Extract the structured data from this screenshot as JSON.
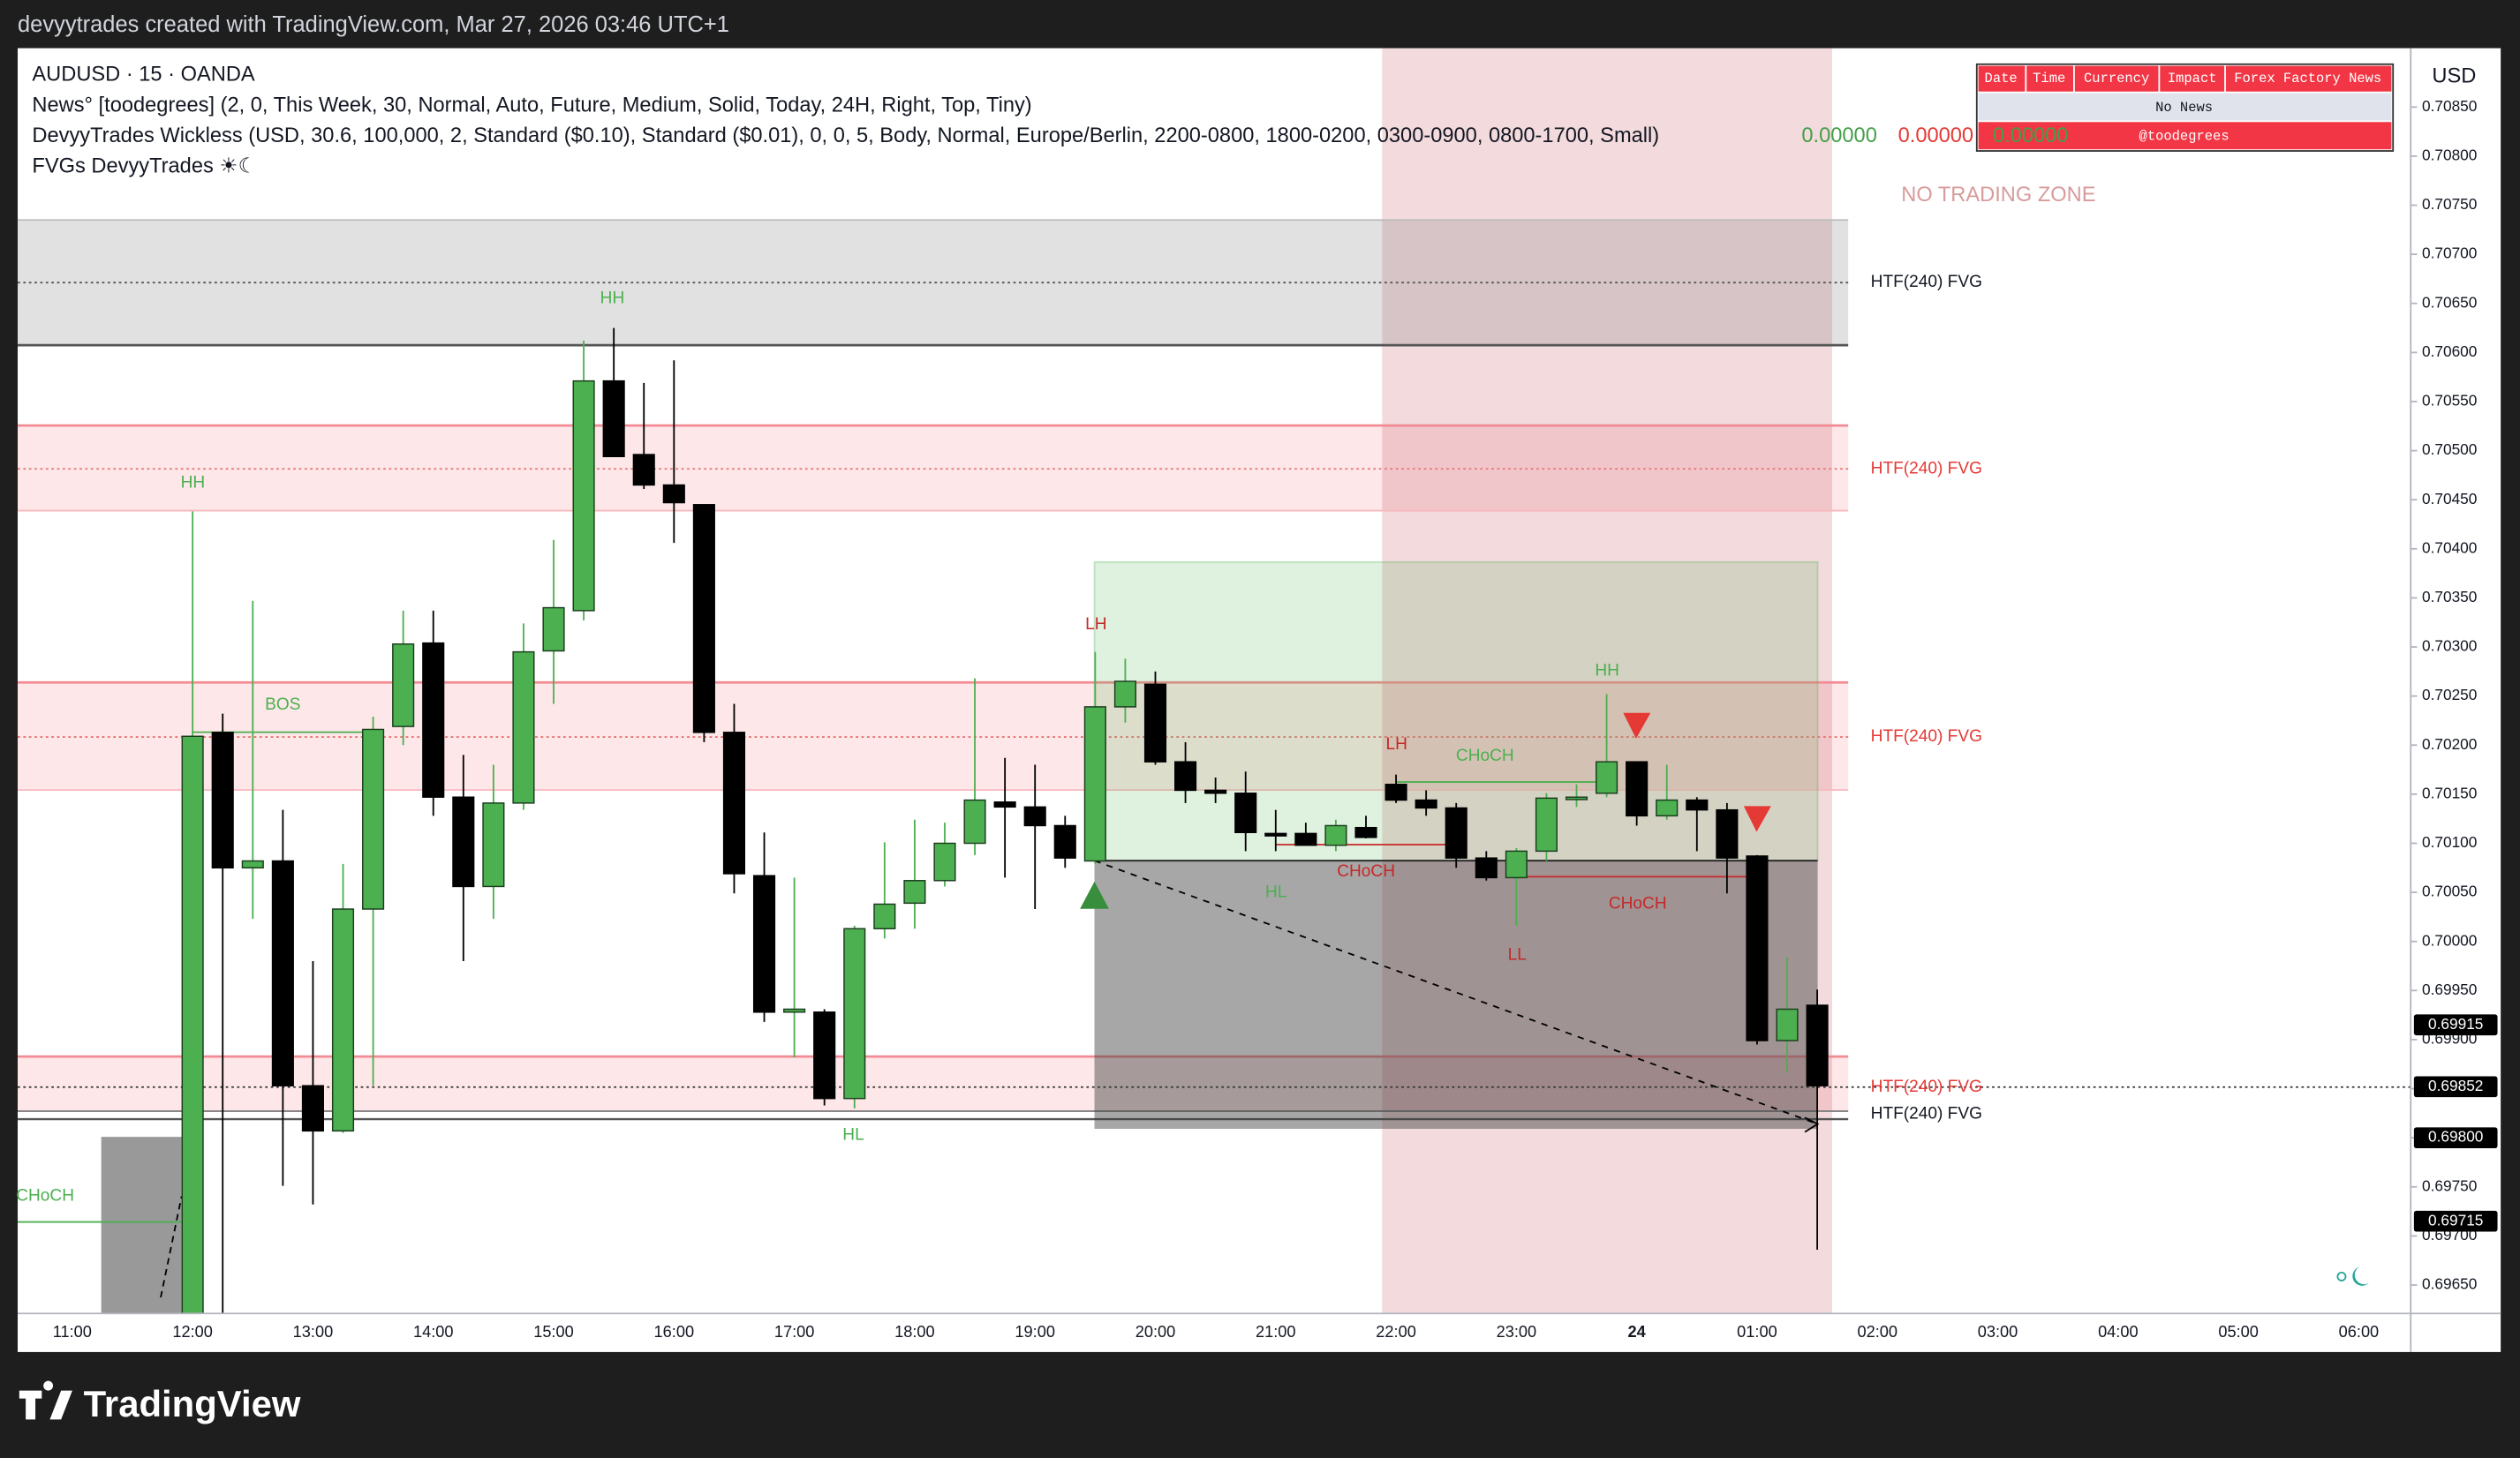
{
  "header": {
    "caption": "devyytrades created with TradingView.com, Mar 27, 2026 03:46 UTC+1"
  },
  "legend": {
    "symbol": "AUDUSD · 15 · OANDA",
    "indicators": [
      "News° [toodegrees] (2, 0, This Week, 30, Normal, Auto, Future, Medium, Solid, Today, 24H, Right, Top, Tiny)",
      "DevyyTrades Wickless (USD, 30.6, 100,000, 2, Standard ($0.10), Standard ($0.01), 0, 0, 5, Body, Normal, Europe/Berlin, 2200-0800, 1800-0200, 0300-0900, 0800-1700, Small)",
      "FVGs DevyyTrades ☀☾"
    ],
    "indicator_values": [
      "0.00000",
      "0.00000",
      "0.00000"
    ]
  },
  "news_table": {
    "columns": [
      "Date",
      "Time",
      "Currency",
      "Impact",
      "Forex Factory News"
    ],
    "message": "No News",
    "credit": "@toodegrees"
  },
  "zone_label": "NO TRADING ZONE",
  "fvg_labels": [
    "HTF(240) FVG",
    "HTF(240) FVG",
    "HTF(240) FVG",
    "HTF(240) FVG",
    "HTF(240) FVG"
  ],
  "annotations": [
    "HH",
    "HH",
    "BOS",
    "LH",
    "HL",
    "CHoCH",
    "LH",
    "CHoCH",
    "HH",
    "CHoCH",
    "LL",
    "HL",
    "CHoCH"
  ],
  "currency": "USD",
  "footer": {
    "brand": "TradingView"
  },
  "chart_data": {
    "type": "candlestick",
    "title": "AUDUSD · 15 · OANDA",
    "up_color": "#4caf50",
    "down_color": "#000000",
    "grid": false,
    "categories": [
      null,
      "11:00",
      null,
      null,
      null,
      "12:00",
      null,
      null,
      null,
      "13:00",
      null,
      null,
      null,
      "14:00",
      null,
      null,
      null,
      "15:00",
      null,
      null,
      null,
      "16:00",
      null,
      null,
      null,
      "17:00",
      null,
      null,
      null,
      "18:00",
      null,
      null,
      null,
      "19:00",
      null,
      null,
      null,
      "20:00",
      null,
      null,
      null,
      "21:00",
      null,
      null,
      null,
      "22:00",
      null,
      null,
      null,
      "23:00",
      null,
      null,
      null,
      "24",
      null,
      null,
      null,
      "01:00",
      null,
      null,
      null,
      "02:00",
      null,
      null,
      null,
      "03:00",
      null,
      null,
      null,
      "04:00",
      null,
      null,
      null,
      "05:00",
      null,
      null,
      null,
      "06:00"
    ],
    "open": [
      null,
      null,
      null,
      null,
      null,
      0.69601,
      0.70213,
      0.70075,
      0.70082,
      0.69853,
      0.69807,
      0.70033,
      0.70219,
      0.70304,
      0.70147,
      0.70056,
      0.70141,
      0.70296,
      0.70337,
      0.70571,
      0.70496,
      0.70465,
      0.70445,
      0.70213,
      0.70067,
      0.69928,
      0.69928,
      0.6984,
      0.70013,
      0.70039,
      0.70062,
      0.701,
      0.70142,
      0.70137,
      0.70118,
      0.70082,
      0.70239,
      0.70262,
      0.70183,
      0.70154,
      0.70151,
      0.7011,
      0.7011,
      0.70098,
      0.70116,
      0.7016,
      0.70144,
      0.70136,
      0.70085,
      0.70065,
      0.70092,
      0.70147,
      0.70151,
      0.70183,
      0.70128,
      0.70144,
      0.70134,
      0.70087,
      0.69899,
      0.69935,
      null,
      null,
      null,
      null,
      null,
      null,
      null,
      null,
      null,
      null,
      null,
      null,
      null,
      null,
      null,
      null,
      null,
      null
    ],
    "high": [
      null,
      null,
      null,
      null,
      null,
      0.70438,
      0.70232,
      0.70347,
      0.70134,
      0.6998,
      0.70079,
      0.70229,
      0.70337,
      0.70337,
      0.7019,
      0.7018,
      0.70324,
      0.70409,
      0.70612,
      0.70625,
      0.70569,
      0.70592,
      0.70445,
      0.70242,
      0.70111,
      0.70065,
      0.69931,
      0.70016,
      0.70101,
      0.70124,
      0.70121,
      0.70268,
      0.70187,
      0.7018,
      0.70128,
      0.70295,
      0.70288,
      0.70275,
      0.70203,
      0.70167,
      0.70173,
      0.70134,
      0.70121,
      0.70124,
      0.70128,
      0.7017,
      0.70154,
      0.70141,
      0.70092,
      0.70095,
      0.70151,
      0.7016,
      0.70252,
      0.70183,
      0.7018,
      0.70147,
      0.70141,
      0.70088,
      0.69984,
      0.69951,
      null,
      null,
      null,
      null,
      null,
      null,
      null,
      null,
      null,
      null,
      null,
      null,
      null,
      null,
      null,
      null,
      null,
      null
    ],
    "low": [
      null,
      null,
      null,
      null,
      null,
      0.6959,
      0.69621,
      0.70023,
      0.69751,
      0.69732,
      0.69805,
      0.69853,
      0.702,
      0.70128,
      0.6998,
      0.70023,
      0.70134,
      0.70242,
      0.70327,
      0.70494,
      0.70461,
      0.70406,
      0.70203,
      0.70049,
      0.69918,
      0.69882,
      0.69833,
      0.6983,
      0.70003,
      0.70013,
      0.70056,
      0.70088,
      0.70065,
      0.70033,
      0.70075,
      0.70079,
      0.70223,
      0.7018,
      0.70141,
      0.70141,
      0.70092,
      0.70092,
      0.70098,
      0.70092,
      0.70105,
      0.70141,
      0.70128,
      0.70075,
      0.70062,
      0.70016,
      0.70082,
      0.70137,
      0.70147,
      0.70118,
      0.70124,
      0.70092,
      0.70049,
      0.69895,
      0.69866,
      0.69686,
      null,
      null,
      null,
      null,
      null,
      null,
      null,
      null,
      null,
      null,
      null,
      null,
      null,
      null,
      null,
      null,
      null,
      null
    ],
    "close": [
      null,
      null,
      null,
      null,
      null,
      0.70209,
      0.70075,
      0.70082,
      0.69853,
      0.69807,
      0.70033,
      0.70216,
      0.70303,
      0.70147,
      0.70056,
      0.70141,
      0.70295,
      0.7034,
      0.70571,
      0.70494,
      0.70465,
      0.70447,
      0.70213,
      0.70069,
      0.69928,
      0.69931,
      0.6984,
      0.70013,
      0.70038,
      0.70062,
      0.701,
      0.70144,
      0.70137,
      0.70118,
      0.70085,
      0.70239,
      0.70265,
      0.70183,
      0.70154,
      0.70151,
      0.70111,
      0.70108,
      0.70098,
      0.70118,
      0.70106,
      0.70144,
      0.70136,
      0.70085,
      0.70065,
      0.70092,
      0.70146,
      0.70147,
      0.70183,
      0.70128,
      0.70144,
      0.70134,
      0.70085,
      0.69899,
      0.69931,
      0.69853,
      null,
      null,
      null,
      null,
      null,
      null,
      null,
      null,
      null,
      null,
      null,
      null,
      null,
      null,
      null,
      null,
      null,
      null
    ],
    "ylim": [
      0.69621,
      0.7091
    ],
    "yticks": [
      {
        "value": 0.6965,
        "label": "0.69650"
      },
      {
        "value": 0.697,
        "label": "0.69700"
      },
      {
        "value": 0.6975,
        "label": "0.69750"
      },
      {
        "value": 0.698,
        "label": "0.69800"
      },
      {
        "value": 0.6985,
        "label": "0.69850"
      },
      {
        "value": 0.699,
        "label": "0.69900"
      },
      {
        "value": 0.6995,
        "label": "0.69950"
      },
      {
        "value": 0.7,
        "label": "0.70000"
      },
      {
        "value": 0.7005,
        "label": "0.70050"
      },
      {
        "value": 0.701,
        "label": "0.70100"
      },
      {
        "value": 0.7015,
        "label": "0.70150"
      },
      {
        "value": 0.702,
        "label": "0.70200"
      },
      {
        "value": 0.7025,
        "label": "0.70250"
      },
      {
        "value": 0.703,
        "label": "0.70300"
      },
      {
        "value": 0.7035,
        "label": "0.70350"
      },
      {
        "value": 0.704,
        "label": "0.70400"
      },
      {
        "value": 0.7045,
        "label": "0.70450"
      },
      {
        "value": 0.705,
        "label": "0.70500"
      },
      {
        "value": 0.7055,
        "label": "0.70550"
      },
      {
        "value": 0.706,
        "label": "0.70600"
      },
      {
        "value": 0.7065,
        "label": "0.70650"
      },
      {
        "value": 0.707,
        "label": "0.70700"
      },
      {
        "value": 0.7075,
        "label": "0.70750"
      },
      {
        "value": 0.708,
        "label": "0.70800"
      },
      {
        "value": 0.7085,
        "label": "0.70850"
      }
    ],
    "price_labels": [
      0.69915,
      0.69852,
      {
        "value": 0.698,
        "label": "0.69800"
      },
      0.69715
    ]
  }
}
